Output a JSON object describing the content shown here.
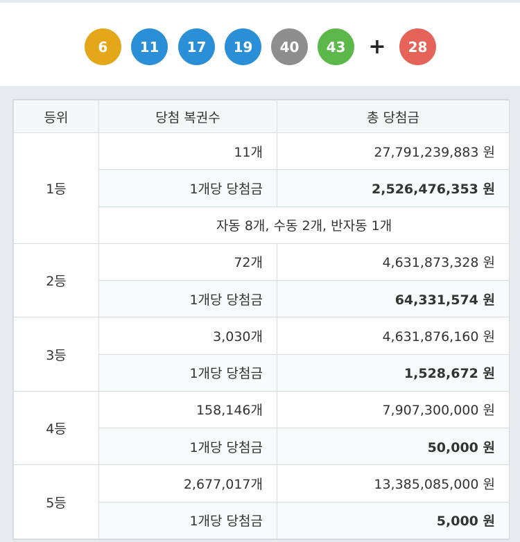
{
  "balls": [
    {
      "number": "6",
      "color": "#e4a719"
    },
    {
      "number": "11",
      "color": "#2b8fd8"
    },
    {
      "number": "17",
      "color": "#2b8fd8"
    },
    {
      "number": "19",
      "color": "#2b8fd8"
    },
    {
      "number": "40",
      "color": "#8e8e8e"
    },
    {
      "number": "43",
      "color": "#5cb84a"
    }
  ],
  "plus": "+",
  "bonus": {
    "number": "28",
    "color": "#e6635a"
  },
  "table": {
    "headers": [
      "등위",
      "당첨 복권수",
      "총 당첨금"
    ],
    "rows": [
      {
        "rank": "1등",
        "count": "11개",
        "total": "27,791,239,883 원",
        "per_label": "1개당 당첨금",
        "per_prize": "2,526,476,353 원",
        "note": "자동 8개, 수동 2개, 반자동 1개"
      },
      {
        "rank": "2등",
        "count": "72개",
        "total": "4,631,873,328 원",
        "per_label": "1개당 당첨금",
        "per_prize": "64,331,574 원"
      },
      {
        "rank": "3등",
        "count": "3,030개",
        "total": "4,631,876,160 원",
        "per_label": "1개당 당첨금",
        "per_prize": "1,528,672 원"
      },
      {
        "rank": "4등",
        "count": "158,146개",
        "total": "7,907,300,000 원",
        "per_label": "1개당 당첨금",
        "per_prize": "50,000 원"
      },
      {
        "rank": "5등",
        "count": "2,677,017개",
        "total": "13,385,085,000 원",
        "per_label": "1개당 당첨금",
        "per_prize": "5,000 원"
      }
    ]
  }
}
